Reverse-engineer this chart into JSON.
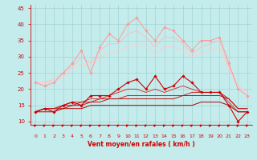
{
  "x": [
    0,
    1,
    2,
    3,
    4,
    5,
    6,
    7,
    8,
    9,
    10,
    11,
    12,
    13,
    14,
    15,
    16,
    17,
    18,
    19,
    20,
    21,
    22,
    23
  ],
  "series": [
    {
      "color": "#ff9999",
      "lw": 0.7,
      "marker": "D",
      "ms": 1.8,
      "values": [
        22,
        21,
        22,
        25,
        28,
        32,
        25,
        33,
        37,
        35,
        40,
        42,
        38,
        35,
        39,
        38,
        35,
        32,
        35,
        35,
        36,
        28,
        20,
        18
      ]
    },
    {
      "color": "#ffbbbb",
      "lw": 0.7,
      "marker": null,
      "ms": 0,
      "values": [
        22,
        22,
        23,
        25,
        27,
        30,
        28,
        32,
        34,
        34,
        37,
        38,
        36,
        33,
        36,
        36,
        34,
        31,
        33,
        34,
        35,
        27,
        21,
        19
      ]
    },
    {
      "color": "#ffcccc",
      "lw": 0.7,
      "marker": null,
      "ms": 0,
      "values": [
        22,
        22,
        22,
        24,
        26,
        28,
        27,
        30,
        31,
        32,
        33,
        34,
        33,
        31,
        33,
        33,
        32,
        30,
        31,
        32,
        33,
        26,
        21,
        19
      ]
    },
    {
      "color": "#cc0000",
      "lw": 0.8,
      "marker": "D",
      "ms": 1.8,
      "values": [
        13,
        14,
        13,
        15,
        16,
        15,
        18,
        18,
        18,
        20,
        22,
        23,
        20,
        24,
        20,
        21,
        24,
        22,
        19,
        19,
        19,
        15,
        10,
        13
      ]
    },
    {
      "color": "#dd3333",
      "lw": 0.7,
      "marker": null,
      "ms": 0,
      "values": [
        13,
        14,
        14,
        15,
        16,
        16,
        17,
        17,
        18,
        19,
        20,
        20,
        19,
        20,
        19,
        20,
        21,
        20,
        19,
        19,
        19,
        16,
        13,
        13
      ]
    },
    {
      "color": "#cc2222",
      "lw": 0.7,
      "marker": null,
      "ms": 0,
      "values": [
        13,
        14,
        14,
        15,
        15,
        16,
        16,
        17,
        17,
        17,
        18,
        18,
        18,
        18,
        18,
        18,
        18,
        19,
        19,
        19,
        19,
        17,
        14,
        14
      ]
    },
    {
      "color": "#bb1111",
      "lw": 0.7,
      "marker": null,
      "ms": 0,
      "values": [
        13,
        14,
        14,
        14,
        15,
        15,
        16,
        16,
        17,
        17,
        17,
        17,
        17,
        17,
        17,
        17,
        18,
        18,
        18,
        18,
        18,
        17,
        14,
        14
      ]
    },
    {
      "color": "#aa0000",
      "lw": 0.7,
      "marker": null,
      "ms": 0,
      "values": [
        13,
        13,
        13,
        14,
        14,
        14,
        15,
        15,
        15,
        15,
        15,
        15,
        15,
        15,
        15,
        15,
        15,
        15,
        16,
        16,
        16,
        15,
        13,
        13
      ]
    }
  ],
  "xlabel": "Vent moyen/en rafales ( km/h )",
  "ylim": [
    9,
    46
  ],
  "xlim": [
    -0.5,
    23.5
  ],
  "yticks": [
    10,
    15,
    20,
    25,
    30,
    35,
    40,
    45
  ],
  "xticks": [
    0,
    1,
    2,
    3,
    4,
    5,
    6,
    7,
    8,
    9,
    10,
    11,
    12,
    13,
    14,
    15,
    16,
    17,
    18,
    19,
    20,
    21,
    22,
    23
  ],
  "bg_color": "#c5ecec",
  "grid_color": "#99cccc",
  "axis_color": "#cc0000",
  "text_color": "#cc0000",
  "tick_color": "#cc0000"
}
